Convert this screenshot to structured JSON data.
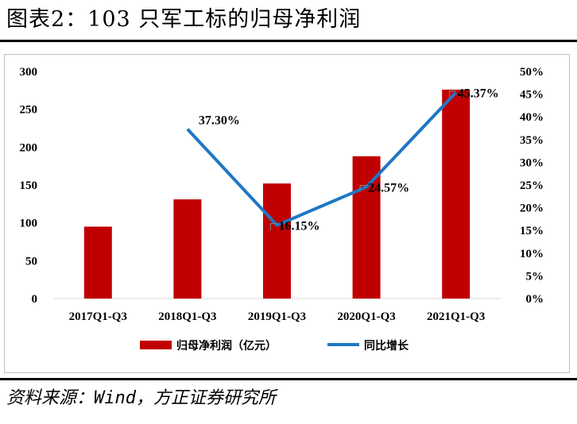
{
  "header": {
    "title": "图表2：103 只军工标的归母净利润"
  },
  "footer": {
    "source": "资料来源：Wind，方正证券研究所"
  },
  "colors": {
    "bar": "#c00000",
    "line": "#1f77c4",
    "text": "#000000"
  },
  "chart_data": {
    "type": "bar+line",
    "title": "103 只军工标的归母净利润",
    "categories": [
      "2017Q1-Q3",
      "2018Q1-Q3",
      "2019Q1-Q3",
      "2020Q1-Q3",
      "2021Q1-Q3"
    ],
    "series": [
      {
        "name": "归母净利润（亿元）",
        "type": "bar",
        "axis": "left",
        "values": [
          95,
          131,
          152,
          188,
          276
        ]
      },
      {
        "name": "同比增长",
        "type": "line",
        "axis": "right",
        "values": [
          null,
          37.3,
          16.15,
          24.57,
          45.37
        ],
        "labels": [
          "",
          "37.30%",
          "16.15%",
          "24.57%",
          "45.37%"
        ]
      }
    ],
    "ylim_left": [
      0,
      300
    ],
    "yticks_left": [
      "0",
      "50",
      "100",
      "150",
      "200",
      "250",
      "300"
    ],
    "ylim_right": [
      0,
      50
    ],
    "yticks_right": [
      "0%",
      "5%",
      "10%",
      "15%",
      "20%",
      "25%",
      "30%",
      "35%",
      "40%",
      "45%",
      "50%"
    ],
    "legend": [
      "归母净利润（亿元）",
      "同比增长"
    ],
    "legend_position": "bottom"
  }
}
